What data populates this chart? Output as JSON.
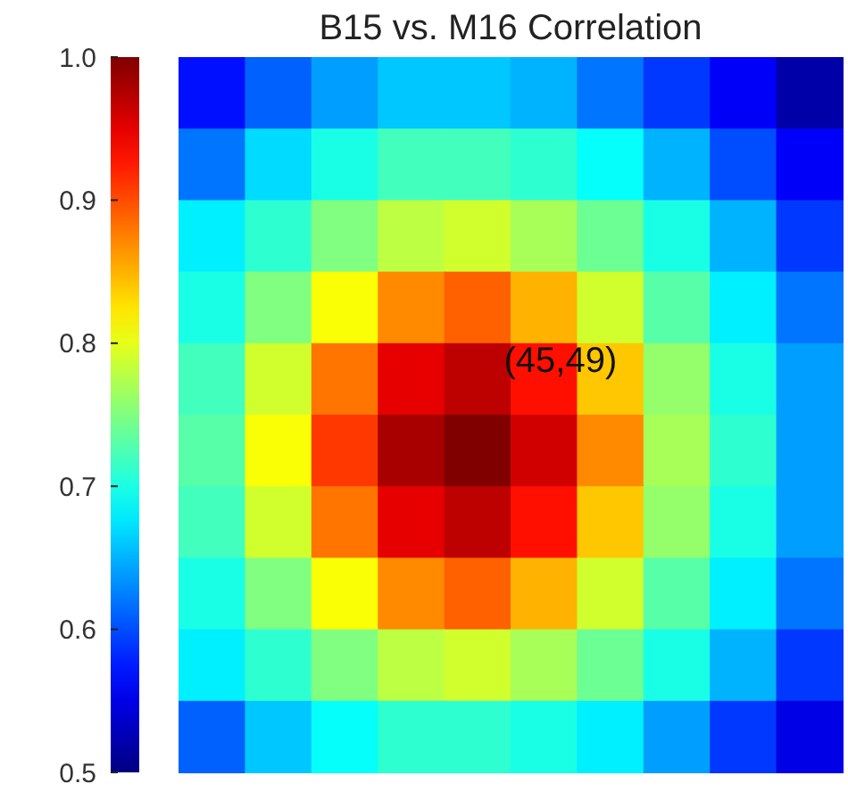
{
  "chart_data": {
    "type": "heatmap",
    "title": "B15 vs. M16 Correlation",
    "categories": [
      null,
      null,
      null,
      null,
      null,
      null,
      null,
      null,
      null,
      null
    ],
    "y_categories": [
      null,
      null,
      null,
      null,
      null,
      null,
      null,
      null,
      null,
      null
    ],
    "cells": [
      [
        0.57,
        0.61,
        0.64,
        0.66,
        0.66,
        0.65,
        0.62,
        0.59,
        0.56,
        0.52
      ],
      [
        0.62,
        0.67,
        0.7,
        0.72,
        0.72,
        0.71,
        0.69,
        0.65,
        0.6,
        0.56
      ],
      [
        0.68,
        0.71,
        0.75,
        0.78,
        0.79,
        0.77,
        0.74,
        0.7,
        0.65,
        0.59
      ],
      [
        0.7,
        0.75,
        0.81,
        0.87,
        0.89,
        0.85,
        0.79,
        0.73,
        0.68,
        0.62
      ],
      [
        0.72,
        0.79,
        0.88,
        0.95,
        0.97,
        0.93,
        0.84,
        0.76,
        0.7,
        0.64
      ],
      [
        0.73,
        0.81,
        0.91,
        0.98,
        1.0,
        0.96,
        0.87,
        0.77,
        0.71,
        0.64
      ],
      [
        0.72,
        0.79,
        0.88,
        0.95,
        0.97,
        0.93,
        0.84,
        0.76,
        0.7,
        0.64
      ],
      [
        0.7,
        0.75,
        0.81,
        0.87,
        0.89,
        0.85,
        0.79,
        0.73,
        0.68,
        0.62
      ],
      [
        0.68,
        0.71,
        0.75,
        0.78,
        0.79,
        0.77,
        0.74,
        0.7,
        0.65,
        0.59
      ],
      [
        0.61,
        0.66,
        0.69,
        0.71,
        0.71,
        0.7,
        0.68,
        0.64,
        0.59,
        0.55
      ]
    ],
    "clim": [
      0.5,
      1.0
    ],
    "cticks": [
      {
        "value": 0.5,
        "label": "0.5"
      },
      {
        "value": 0.6,
        "label": "0.6"
      },
      {
        "value": 0.7,
        "label": "0.7"
      },
      {
        "value": 0.8,
        "label": "0.8"
      },
      {
        "value": 0.9,
        "label": "0.9"
      },
      {
        "value": 1.0,
        "label": "1.0"
      }
    ],
    "annotations": [
      "(45,49)"
    ]
  }
}
